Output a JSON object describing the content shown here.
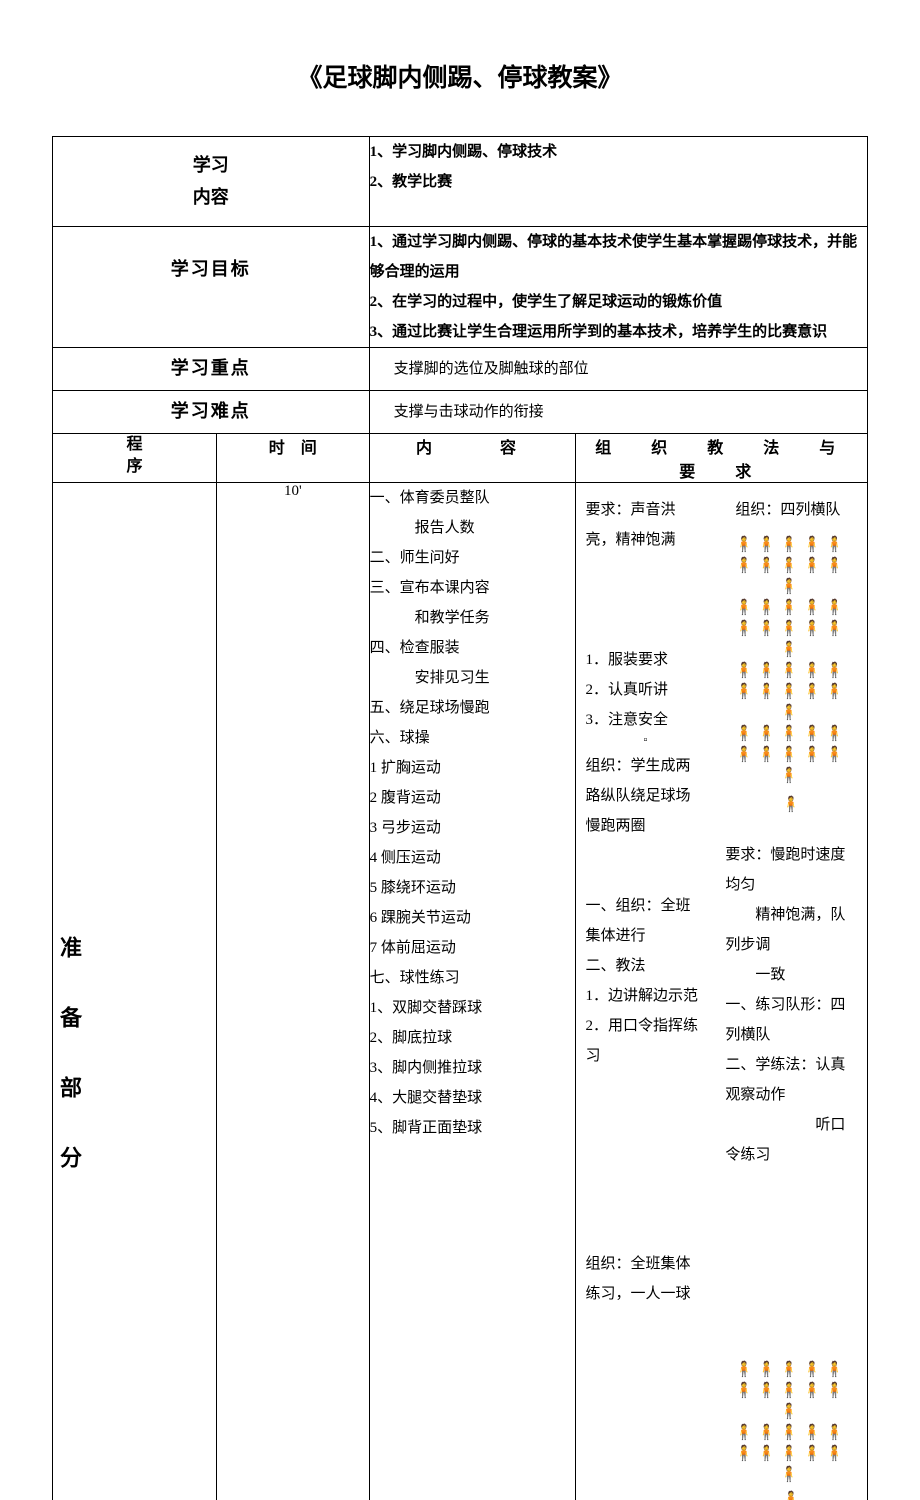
{
  "title": "《足球脚内侧踢、停球教案》",
  "rows": {
    "content_label": "学习内容",
    "content_items": [
      "1、学习脚内侧踢、停球技术",
      "2、教学比赛"
    ],
    "goal_label": "学习目标",
    "goal_items": [
      "1、通过学习脚内侧踢、停球的基本技术使学生基本掌握踢停球技术，并能够合理的运用",
      "2、在学习的过程中，使学生了解足球运动的锻炼价值",
      "3、通过比赛让学生合理运用所学到的基本技术，培养学生的比赛意识"
    ],
    "key_label": "学习重点",
    "key_text": "支撑脚的选位及脚触球的部位",
    "diff_label": "学习难点",
    "diff_text": "支撑与击球动作的衔接"
  },
  "header": {
    "col1": "程序",
    "col2": "时　间",
    "col3": "内　　容",
    "col4": "组　织　教　法　与　要　求"
  },
  "prep": {
    "label": "准备部分",
    "time": "10'",
    "content": [
      "一、体育委员整队",
      "　　　报告人数",
      "二、师生问好",
      "三、宣布本课内容",
      "　　　和教学任务",
      "四、检查服装",
      "　　　安排见习生",
      "五、绕足球场慢跑",
      "六、球操",
      "1 扩胸运动",
      "2 腹背运动",
      "3 弓步运动",
      "4 侧压运动",
      "5 膝绕环运动",
      "6 踝腕关节运动",
      "7 体前屈运动",
      "七、球性练习",
      "1、双脚交替踩球",
      "2、脚底拉球",
      "3、脚内侧推拉球",
      "4、大腿交替垫球",
      "5、脚背正面垫球"
    ],
    "mid": {
      "req_top": "要求：声音洪亮，精神饱满",
      "list": [
        "1．服装要求",
        "2．认真听讲",
        "3．注意安全"
      ],
      "org1": "组织：学生成两路纵队绕足球场慢跑两圈",
      "org2a": "一、组织：全班集体进行",
      "org2b": "二、教法",
      "org2c": "1．边讲解边示范",
      "org2d": "2．用口令指挥练习",
      "org3": "组织：全班集体练习，一人一球"
    },
    "right": {
      "org_top": "组织：四列横队",
      "req2": "要求：慢跑时速度均匀",
      "req2b": "　　精神饱满，队列步调",
      "req2c": "　　一致",
      "r1": "一、练习队形：四列横队",
      "r2": "二、学练法：认真观察动作",
      "r2b": "　　　　　　听口令练习"
    }
  },
  "icons": {
    "student": "🧍",
    "teacher": "🧍"
  }
}
